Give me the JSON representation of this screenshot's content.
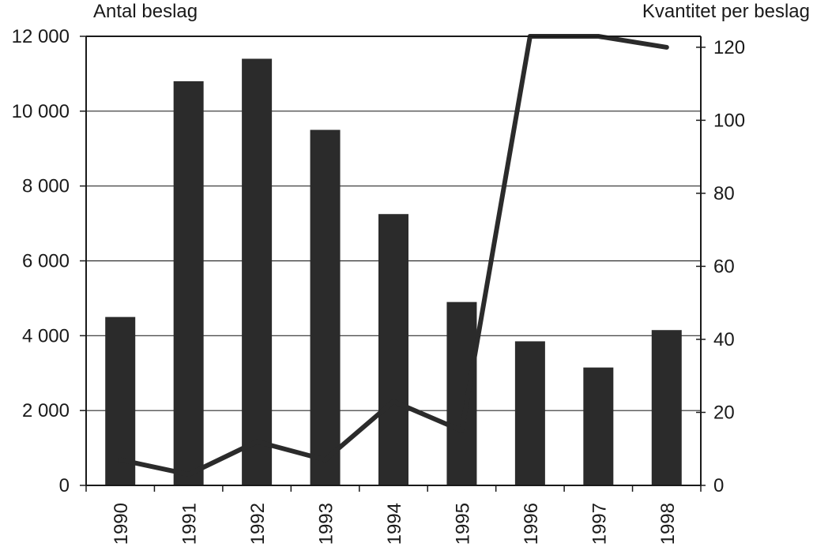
{
  "chart_data": {
    "type": "bar",
    "title": "",
    "xlabel": "",
    "ylabel": "Antal beslag",
    "y2label": "Kvantitet per beslag",
    "categories": [
      "1990",
      "1991",
      "1992",
      "1993",
      "1994",
      "1995",
      "1996",
      "1997",
      "1998"
    ],
    "series": [
      {
        "type": "bar",
        "axis": "left",
        "color": "#2b2b2b",
        "values": [
          4500,
          10800,
          11400,
          9500,
          7250,
          4900,
          3850,
          3150,
          4150
        ]
      },
      {
        "type": "line",
        "axis": "right",
        "color": "#2b2b2b",
        "values": [
          7,
          3,
          12,
          7,
          23,
          15,
          123,
          123,
          120
        ]
      }
    ],
    "ylim": [
      0,
      12000
    ],
    "y2lim": [
      0,
      123
    ],
    "yticks": [
      0,
      2000,
      4000,
      6000,
      8000,
      10000,
      12000
    ],
    "ytick_labels": [
      "0",
      "2 000",
      "4 000",
      "6 000",
      "8 000",
      "10 000",
      "12 000"
    ],
    "y2ticks": [
      0,
      20,
      40,
      60,
      80,
      100,
      120
    ],
    "y2tick_labels": [
      "0",
      "20",
      "40",
      "60",
      "80",
      "100",
      "120"
    ],
    "grid": true,
    "legend": "none"
  }
}
